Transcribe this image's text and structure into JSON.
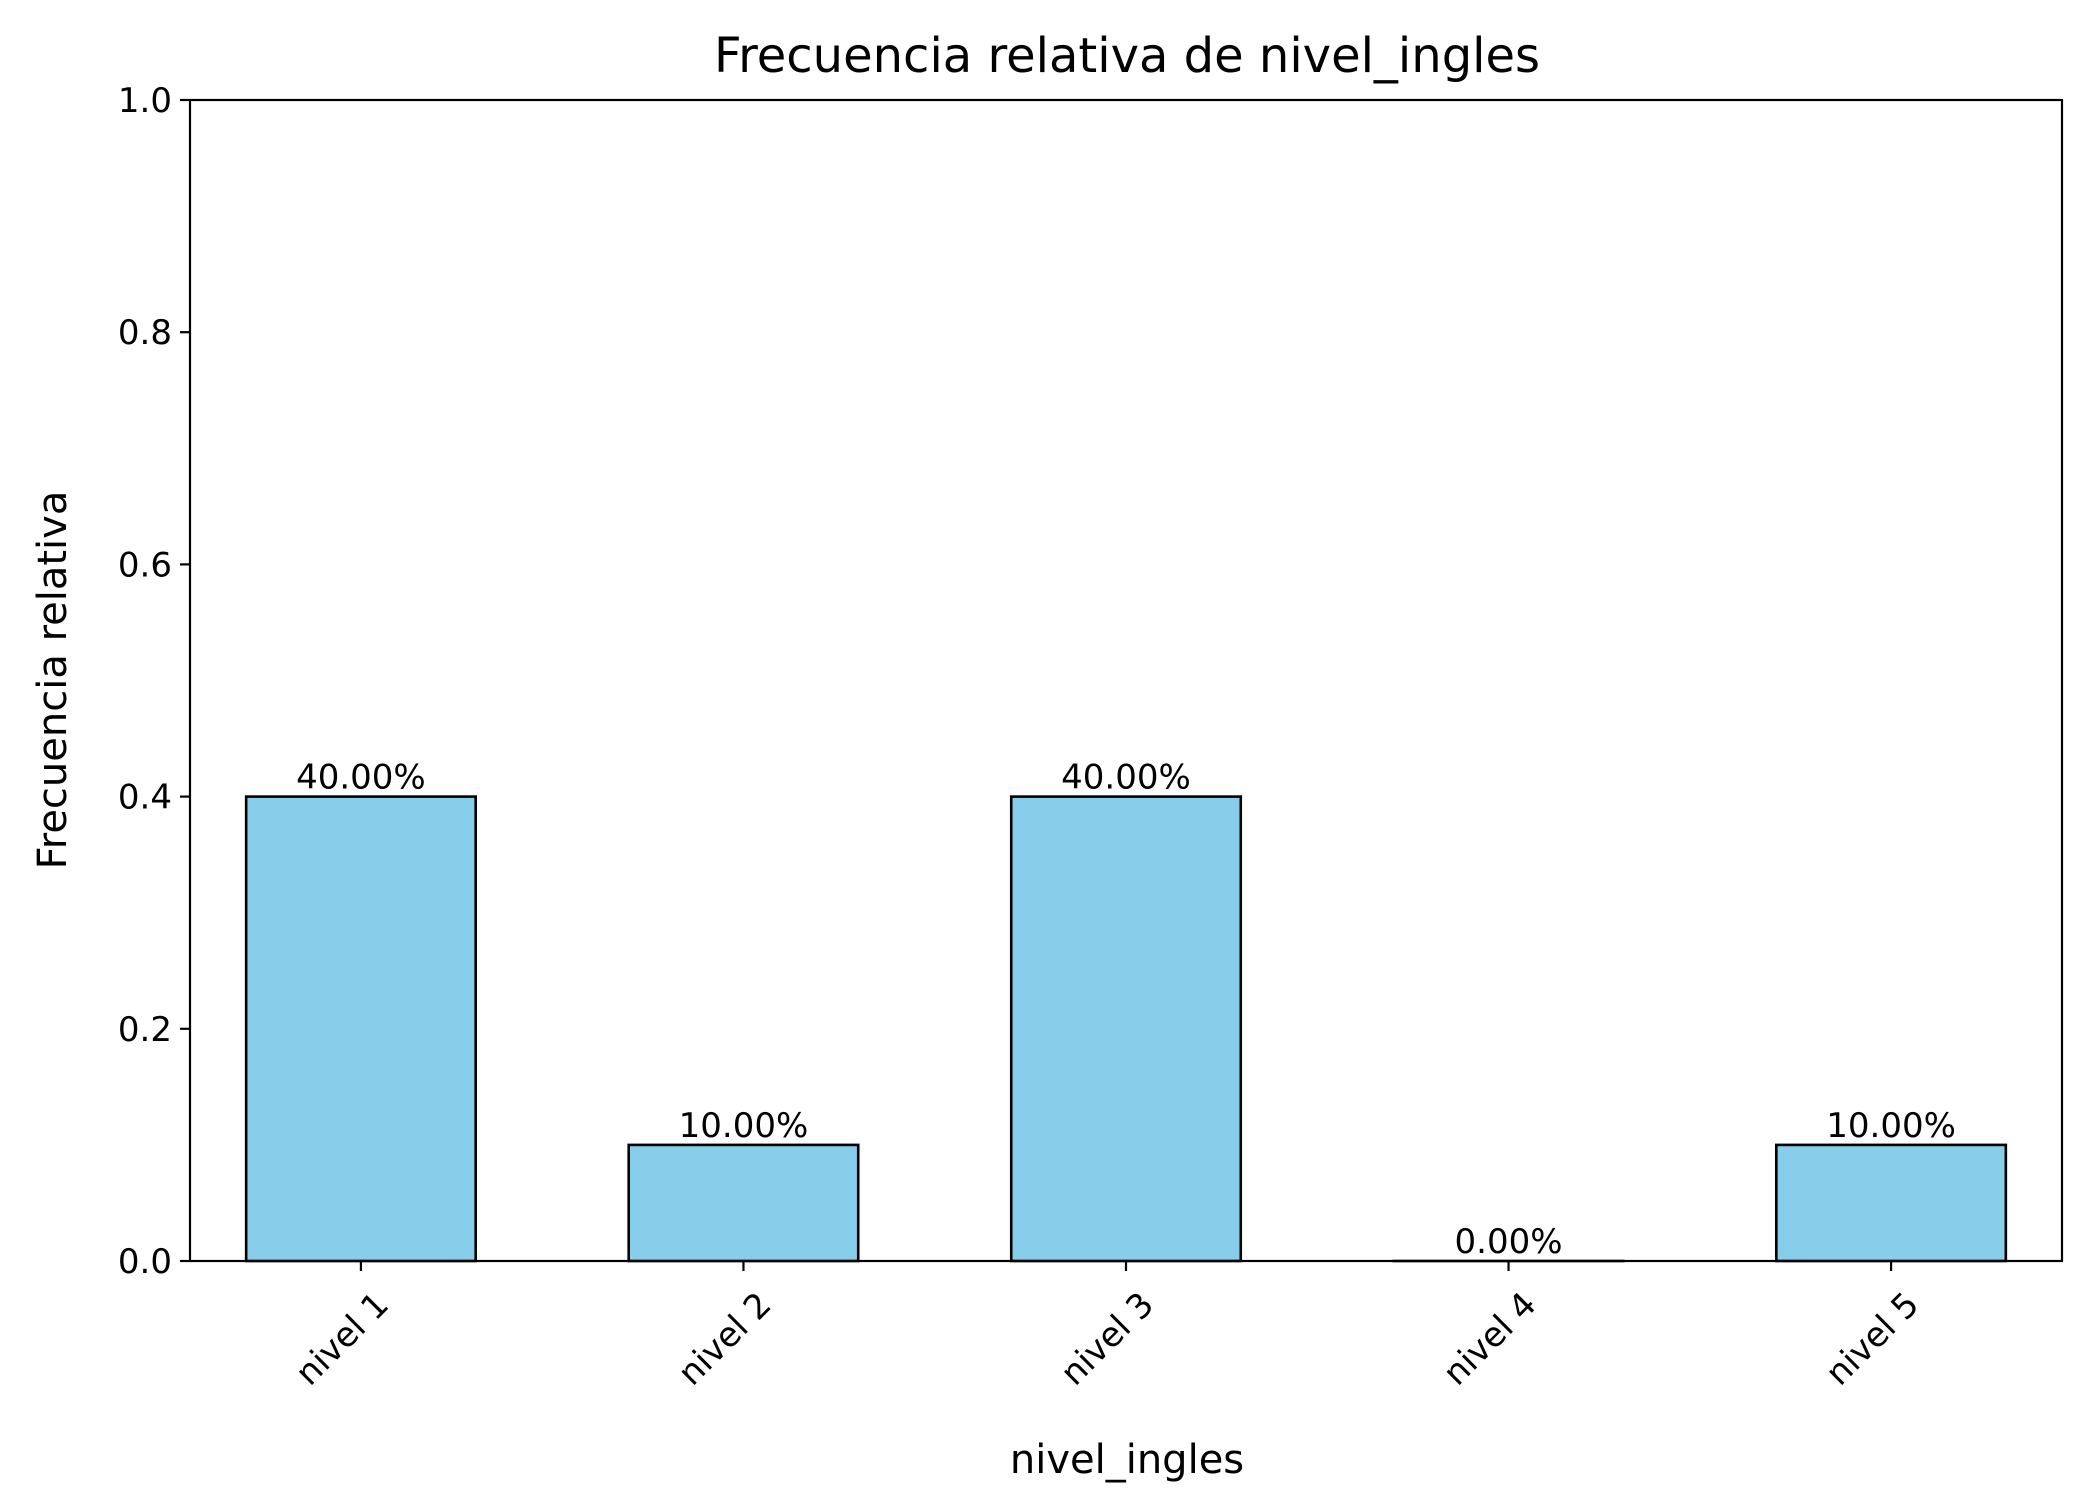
{
  "chart_data": {
    "type": "bar",
    "title": "Frecuencia relativa de nivel_ingles",
    "xlabel": "nivel_ingles",
    "ylabel": "Frecuencia relativa",
    "categories": [
      "nivel 1",
      "nivel 2",
      "nivel 3",
      "nivel 4",
      "nivel 5"
    ],
    "values": [
      0.4,
      0.1,
      0.4,
      0.0,
      0.1
    ],
    "bar_labels": [
      "40.00%",
      "10.00%",
      "40.00%",
      "0.00%",
      "10.00%"
    ],
    "ylim": [
      0,
      1.0
    ],
    "yticks": [
      "0.0",
      "0.2",
      "0.4",
      "0.6",
      "0.8",
      "1.0"
    ],
    "grid": false,
    "legend": "none",
    "colors": {
      "bar_fill": "#87CEEB",
      "bar_edge": "#000000",
      "axis": "#000000"
    }
  }
}
